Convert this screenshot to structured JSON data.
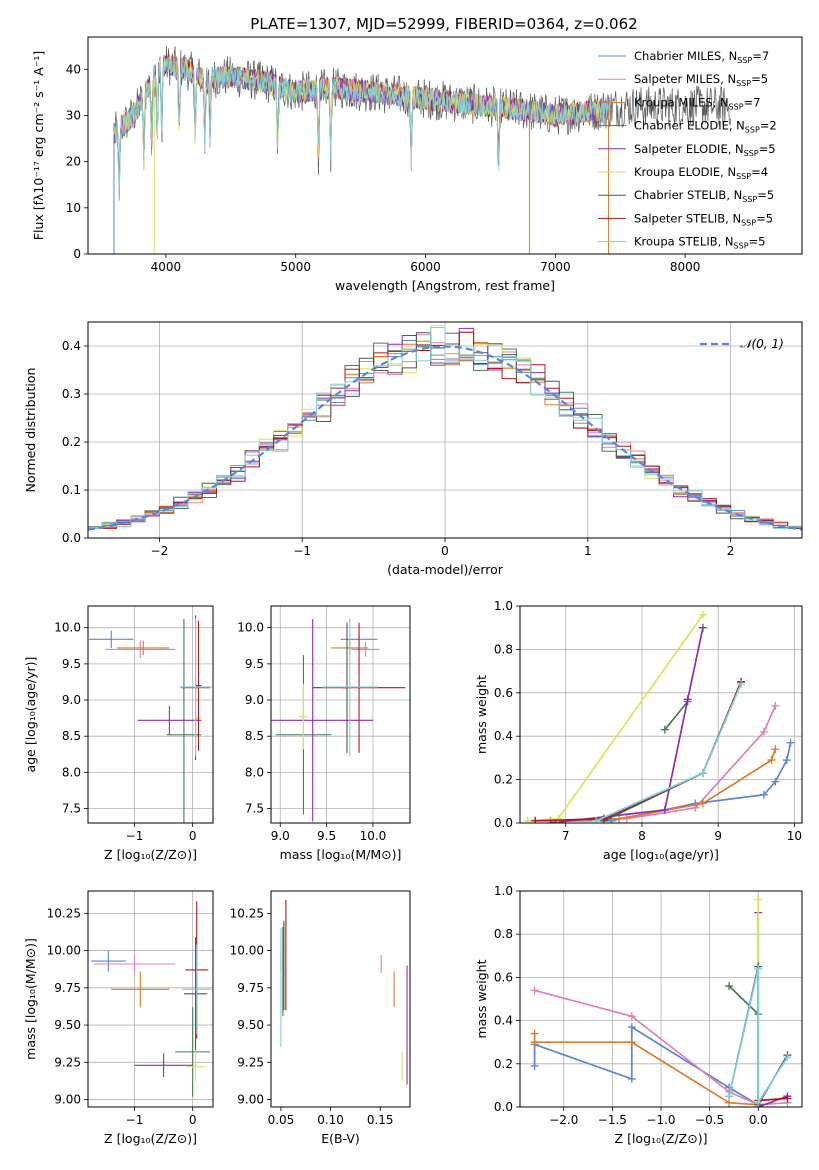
{
  "title": "PLATE=1307, MJD=52999, FIBERID=0364, z=0.062",
  "models": [
    {
      "label": "Chabrier MILES",
      "n": "7",
      "color": "#5b86d6"
    },
    {
      "label": "Salpeter MILES",
      "n": "5",
      "color": "#e07fb5"
    },
    {
      "label": "Kroupa MILES",
      "n": "7",
      "color": "#dd7a2b"
    },
    {
      "label": "Chabrier ELODIE",
      "n": "2",
      "color": "#4a7a50"
    },
    {
      "label": "Salpeter ELODIE",
      "n": "5",
      "color": "#8a2fb0"
    },
    {
      "label": "Kroupa ELODIE",
      "n": "4",
      "color": "#d8e35e"
    },
    {
      "label": "Chabrier STELIB",
      "n": "5",
      "color": "#555555"
    },
    {
      "label": "Salpeter STELIB",
      "n": "5",
      "color": "#b01818"
    },
    {
      "label": "Kroupa STELIB",
      "n": "5",
      "color": "#7fd0d8"
    }
  ],
  "chart_data": [
    {
      "id": "spectrum",
      "type": "line",
      "xlabel": "wavelength [Angstrom, rest frame]",
      "ylabel": "Flux [fλ10⁻¹⁷ erg cm⁻² s⁻¹ A⁻¹]",
      "xlim": [
        3400,
        8900
      ],
      "ylim": [
        0,
        47
      ],
      "xticks": [
        4000,
        5000,
        6000,
        7000,
        8000
      ],
      "yticks": [
        0,
        10,
        20,
        30,
        40
      ],
      "grid": false,
      "legend": "top-right",
      "continuum": [
        [
          3600,
          26
        ],
        [
          3750,
          30
        ],
        [
          3900,
          38
        ],
        [
          4000,
          41
        ],
        [
          4150,
          40
        ],
        [
          4300,
          38
        ],
        [
          4500,
          38.5
        ],
        [
          4800,
          37
        ],
        [
          5000,
          35
        ],
        [
          5300,
          36
        ],
        [
          5600,
          35
        ],
        [
          5900,
          34
        ],
        [
          6200,
          33
        ],
        [
          6500,
          32
        ],
        [
          6800,
          31
        ],
        [
          7000,
          30
        ],
        [
          7300,
          31
        ],
        [
          7500,
          32
        ]
      ],
      "absorption_lines": [
        3640,
        3830,
        3890,
        3933,
        3968,
        4102,
        4226,
        4300,
        4340,
        4861,
        5175,
        5270,
        5890,
        6563
      ],
      "dropouts": [
        [
          3600,
          "#5b86d6"
        ],
        [
          3910,
          "#d8e35e"
        ],
        [
          6800,
          "#dd7a2b"
        ],
        [
          7410,
          "#dd7a2b"
        ]
      ]
    },
    {
      "id": "residuals",
      "type": "step",
      "xlabel": "(data-model)/error",
      "ylabel": "Normed distribution",
      "xlim": [
        -2.5,
        2.5
      ],
      "ylim": [
        0,
        0.45
      ],
      "xticks": [
        -2,
        -1,
        0,
        1,
        2
      ],
      "yticks": [
        0.0,
        0.1,
        0.2,
        0.3,
        0.4
      ],
      "grid": true,
      "legend": "top-right",
      "reference_label": "𝒩(0, 1)",
      "bin_width": 0.1
    },
    {
      "id": "age-vs-Z",
      "type": "errorbar",
      "xlabel": "Z [log₁₀(Z/Z⊙)]",
      "ylabel": "age  [log₁₀(age/yr)]",
      "xlim": [
        -1.8,
        0.35
      ],
      "ylim": [
        7.3,
        10.3
      ],
      "xticks": [
        -1,
        0
      ],
      "yticks": [
        7.5,
        8.0,
        8.5,
        9.0,
        9.5,
        10.0
      ],
      "grid": true,
      "points": [
        {
          "model": 0,
          "x": -1.4,
          "y": 9.84,
          "xerr": 0.38,
          "yerr": 0.12
        },
        {
          "model": 1,
          "x": -0.9,
          "y": 9.7,
          "xerr": 0.6,
          "yerr": 0.12
        },
        {
          "model": 2,
          "x": -0.85,
          "y": 9.72,
          "xerr": 0.45,
          "yerr": 0.1
        },
        {
          "model": 3,
          "x": -0.15,
          "y": 8.52,
          "xerr": 0.3,
          "yerr": 1.6
        },
        {
          "model": 4,
          "x": -0.4,
          "y": 8.72,
          "xerr": 0.55,
          "yerr": 0.2
        },
        {
          "model": 5,
          "x": 0.1,
          "y": 8.75,
          "xerr": 0.05,
          "yerr": 0.15
        },
        {
          "model": 6,
          "x": 0.05,
          "y": 9.17,
          "xerr": 0.25,
          "yerr": 1.0
        },
        {
          "model": 7,
          "x": 0.1,
          "y": 9.2,
          "xerr": 0.05,
          "yerr": 0.9
        },
        {
          "model": 8,
          "x": 0.05,
          "y": 9.18,
          "xerr": 0.28,
          "yerr": 0.95
        }
      ]
    },
    {
      "id": "age-vs-mass",
      "type": "errorbar",
      "xlabel": "mass [log₁₀(M/M⊙)]",
      "ylabel": "",
      "xlim": [
        8.9,
        10.4
      ],
      "ylim": [
        7.3,
        10.3
      ],
      "xticks": [
        9.0,
        9.5,
        10.0
      ],
      "yticks": [
        7.5,
        8.0,
        8.5,
        9.0,
        9.5,
        10.0
      ],
      "grid": true,
      "points": [
        {
          "model": 0,
          "x": 9.85,
          "y": 9.84,
          "xerr": 0.2,
          "yerr": 0.1
        },
        {
          "model": 1,
          "x": 9.92,
          "y": 9.7,
          "xerr": 0.15,
          "yerr": 0.1
        },
        {
          "model": 2,
          "x": 9.75,
          "y": 9.72,
          "xerr": 0.2,
          "yerr": 0.1
        },
        {
          "model": 3,
          "x": 9.25,
          "y": 8.52,
          "xerr": 0.3,
          "yerr": 1.1
        },
        {
          "model": 4,
          "x": 9.35,
          "y": 8.72,
          "xerr": 0.65,
          "yerr": 1.4
        },
        {
          "model": 5,
          "x": 9.25,
          "y": 8.77,
          "xerr": 0.05,
          "yerr": 0.45
        },
        {
          "model": 6,
          "x": 9.72,
          "y": 9.17,
          "xerr": 0.05,
          "yerr": 0.9
        },
        {
          "model": 7,
          "x": 9.85,
          "y": 9.17,
          "xerr": 0.5,
          "yerr": 0.9
        },
        {
          "model": 8,
          "x": 9.75,
          "y": 9.18,
          "xerr": 0.3,
          "yerr": 0.95
        }
      ]
    },
    {
      "id": "weight-vs-age",
      "type": "line",
      "xlabel": "age  [log₁₀(age/yr)]",
      "ylabel": "mass weight",
      "xlim": [
        6.4,
        10.1
      ],
      "ylim": [
        0,
        1.0
      ],
      "xticks": [
        7,
        8,
        9,
        10
      ],
      "yticks": [
        0.0,
        0.2,
        0.4,
        0.6,
        0.8,
        1.0
      ],
      "grid": true,
      "series": [
        {
          "model": 0,
          "x": [
            6.6,
            7.6,
            8.7,
            9.6,
            9.75,
            9.9,
            9.95
          ],
          "y": [
            0.01,
            0.01,
            0.09,
            0.13,
            0.19,
            0.29,
            0.37
          ]
        },
        {
          "model": 1,
          "x": [
            6.8,
            7.8,
            8.7,
            9.6,
            9.75
          ],
          "y": [
            0.01,
            0.02,
            0.07,
            0.42,
            0.54
          ]
        },
        {
          "model": 2,
          "x": [
            6.8,
            7.7,
            8.8,
            9.7,
            9.75
          ],
          "y": [
            0.01,
            0.02,
            0.09,
            0.29,
            0.34
          ]
        },
        {
          "model": 3,
          "x": [
            8.3,
            8.6
          ],
          "y": [
            0.43,
            0.56
          ]
        },
        {
          "model": 4,
          "x": [
            6.8,
            8.3,
            8.6,
            8.8
          ],
          "y": [
            0.0,
            0.06,
            0.57,
            0.9
          ]
        },
        {
          "model": 5,
          "x": [
            6.5,
            6.9,
            8.8
          ],
          "y": [
            0.01,
            0.02,
            0.96
          ]
        },
        {
          "model": 6,
          "x": [
            7.5,
            8.8,
            9.3
          ],
          "y": [
            0.01,
            0.23,
            0.65
          ]
        },
        {
          "model": 7,
          "x": [
            6.6,
            7.5,
            8.8,
            9.3
          ],
          "y": [
            0.01,
            0.02,
            0.23,
            0.65
          ]
        },
        {
          "model": 8,
          "x": [
            7.4,
            8.8,
            9.3
          ],
          "y": [
            0.01,
            0.23,
            0.64
          ]
        }
      ]
    },
    {
      "id": "mass-vs-Z",
      "type": "errorbar",
      "xlabel": "Z [log₁₀(Z/Z⊙)]",
      "ylabel": "mass [log₁₀(M/M⊙)]",
      "xlim": [
        -1.8,
        0.35
      ],
      "ylim": [
        8.95,
        10.4
      ],
      "xticks": [
        -1,
        0
      ],
      "yticks": [
        9.0,
        9.25,
        9.5,
        9.75,
        10.0,
        10.25
      ],
      "grid": true,
      "points": [
        {
          "model": 0,
          "x": -1.45,
          "y": 9.93,
          "xerr": 0.3,
          "yerr": 0.07
        },
        {
          "model": 1,
          "x": -1.0,
          "y": 9.91,
          "xerr": 0.7,
          "yerr": 0.06
        },
        {
          "model": 2,
          "x": -0.9,
          "y": 9.74,
          "xerr": 0.5,
          "yerr": 0.12
        },
        {
          "model": 3,
          "x": 0.0,
          "y": 9.32,
          "xerr": 0.3,
          "yerr": 0.3
        },
        {
          "model": 4,
          "x": -0.5,
          "y": 9.23,
          "xerr": 0.5,
          "yerr": 0.08
        },
        {
          "model": 5,
          "x": 0.05,
          "y": 9.22,
          "xerr": 0.15,
          "yerr": 0.1
        },
        {
          "model": 6,
          "x": 0.05,
          "y": 9.71,
          "xerr": 0.2,
          "yerr": 0.38
        },
        {
          "model": 7,
          "x": 0.07,
          "y": 9.87,
          "xerr": 0.2,
          "yerr": 0.46
        },
        {
          "model": 8,
          "x": 0.07,
          "y": 9.74,
          "xerr": 0.25,
          "yerr": 0.3
        }
      ]
    },
    {
      "id": "mass-vs-ebv",
      "type": "errorbar",
      "xlabel": "E(B-V)",
      "ylabel": "",
      "xlim": [
        0.04,
        0.18
      ],
      "ylim": [
        8.95,
        10.4
      ],
      "xticks": [
        0.05,
        0.1,
        0.15
      ],
      "yticks": [
        9.0,
        9.25,
        9.5,
        9.75,
        10.0,
        10.25
      ],
      "grid": false,
      "points": [
        {
          "model": 0,
          "x": 0.05,
          "y": 9.93,
          "xerr": 0.0,
          "yerr": 0.07
        },
        {
          "model": 1,
          "x": 0.151,
          "y": 9.91,
          "xerr": 0.0,
          "yerr": 0.06
        },
        {
          "model": 2,
          "x": 0.164,
          "y": 9.74,
          "xerr": 0.0,
          "yerr": 0.12
        },
        {
          "model": 3,
          "x": 0.052,
          "y": 9.86,
          "xerr": 0.0,
          "yerr": 0.3
        },
        {
          "model": 4,
          "x": 0.177,
          "y": 9.5,
          "xerr": 0.0,
          "yerr": 0.4
        },
        {
          "model": 5,
          "x": 0.172,
          "y": 9.22,
          "xerr": 0.0,
          "yerr": 0.1
        },
        {
          "model": 6,
          "x": 0.053,
          "y": 9.9,
          "xerr": 0.0,
          "yerr": 0.3
        },
        {
          "model": 7,
          "x": 0.055,
          "y": 9.97,
          "xerr": 0.0,
          "yerr": 0.37
        },
        {
          "model": 8,
          "x": 0.05,
          "y": 9.75,
          "xerr": 0.0,
          "yerr": 0.4
        }
      ]
    },
    {
      "id": "weight-vs-Z",
      "type": "line",
      "xlabel": "Z [log₁₀(Z/Z⊙)]",
      "ylabel": "mass weight",
      "xlim": [
        -2.45,
        0.45
      ],
      "ylim": [
        0,
        1.0
      ],
      "xticks": [
        -2.0,
        -1.5,
        -1.0,
        -0.5,
        0.0
      ],
      "yticks": [
        0.0,
        0.2,
        0.4,
        0.6,
        0.8,
        1.0
      ],
      "grid": true,
      "series": [
        {
          "model": 0,
          "x": [
            -2.3,
            -2.3,
            -1.3,
            -1.3,
            -0.3,
            0.0
          ],
          "y": [
            0.19,
            0.29,
            0.13,
            0.37,
            0.09,
            0.01
          ]
        },
        {
          "model": 1,
          "x": [
            -2.3,
            -1.3,
            -0.3,
            0.0,
            0.3
          ],
          "y": [
            0.54,
            0.42,
            0.07,
            0.01,
            0.02
          ]
        },
        {
          "model": 2,
          "x": [
            -2.3,
            -2.3,
            -1.3,
            -0.3,
            0.0
          ],
          "y": [
            0.34,
            0.3,
            0.3,
            0.02,
            0.01
          ]
        },
        {
          "model": 3,
          "x": [
            -0.3,
            0.0
          ],
          "y": [
            0.56,
            0.43
          ]
        },
        {
          "model": 4,
          "x": [
            0.0,
            0.0,
            0.3
          ],
          "y": [
            0.9,
            0.0,
            0.05
          ]
        },
        {
          "model": 5,
          "x": [
            0.0,
            0.0
          ],
          "y": [
            0.96,
            0.02
          ]
        },
        {
          "model": 6,
          "x": [
            -0.3,
            0.0,
            0.0,
            0.3
          ],
          "y": [
            0.05,
            0.65,
            0.01,
            0.24
          ]
        },
        {
          "model": 7,
          "x": [
            0.0,
            0.3
          ],
          "y": [
            0.03,
            0.04
          ]
        },
        {
          "model": 8,
          "x": [
            -0.3,
            0.0,
            0.0,
            0.3
          ],
          "y": [
            0.05,
            0.64,
            0.02,
            0.23
          ]
        }
      ]
    }
  ]
}
